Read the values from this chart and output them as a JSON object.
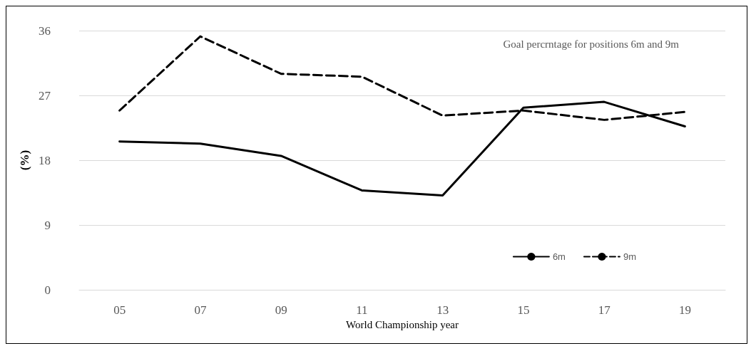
{
  "chart_data": {
    "type": "line",
    "title": "Goal percrntage for positions 6m and 9m",
    "xlabel": "World Championship year",
    "ylabel": "(%)",
    "categories": [
      "05",
      "07",
      "09",
      "11",
      "13",
      "15",
      "17",
      "19"
    ],
    "series": [
      {
        "name": "6m",
        "color": "#000000",
        "line_style": "solid",
        "values": [
          20.6,
          20.3,
          18.6,
          13.8,
          13.1,
          25.3,
          26.1,
          22.7
        ]
      },
      {
        "name": "9m",
        "color": "#000000",
        "line_style": "dashed",
        "values": [
          24.9,
          35.2,
          30.0,
          29.6,
          24.2,
          24.9,
          23.6,
          24.7
        ]
      }
    ],
    "ylim": [
      0,
      36
    ],
    "yticks": [
      0,
      9,
      18,
      27,
      36
    ],
    "grid": "y",
    "legend": "bottom right",
    "marker": "none"
  }
}
